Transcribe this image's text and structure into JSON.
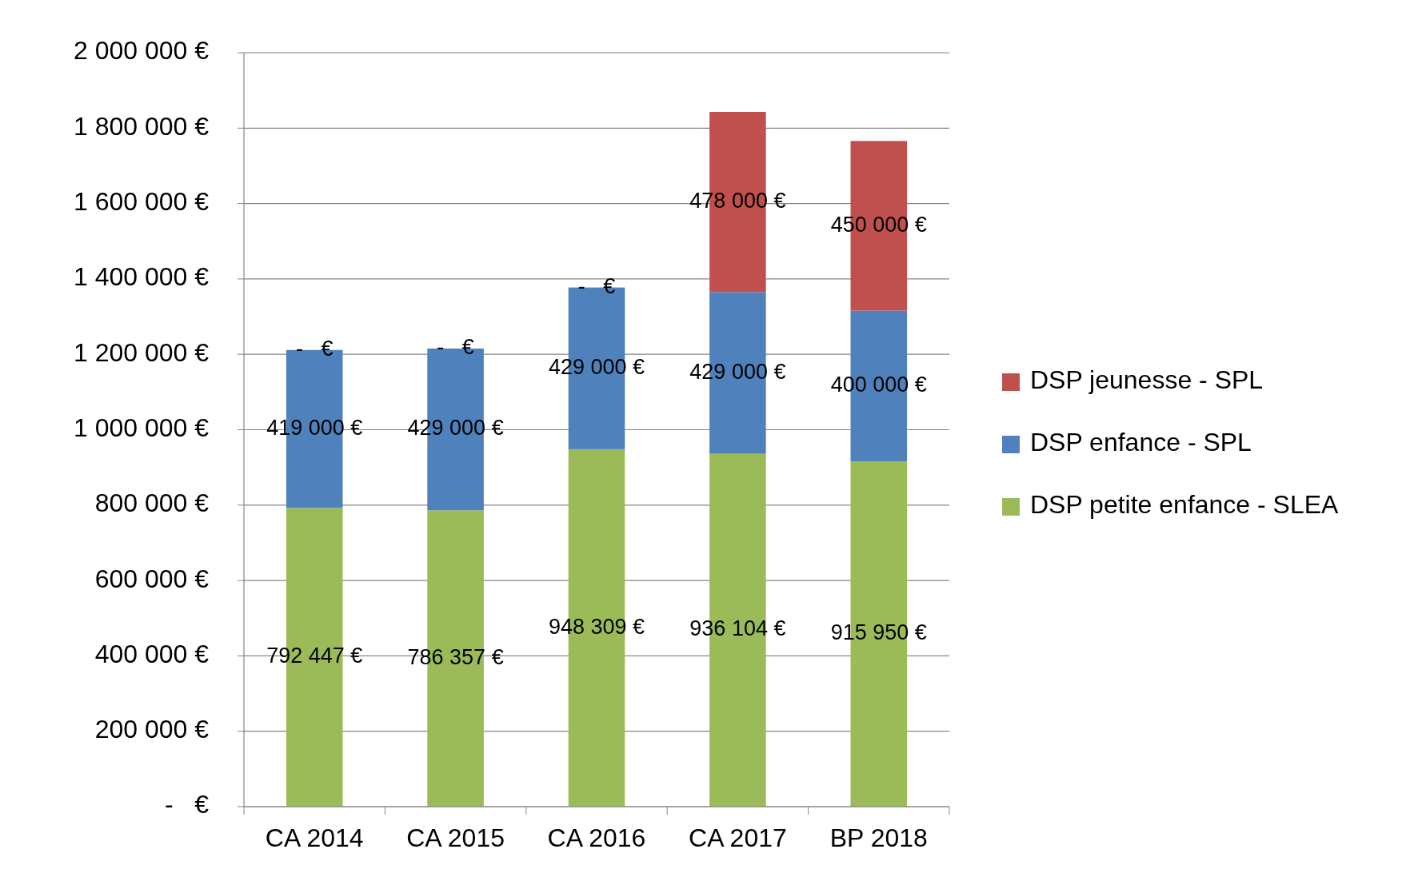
{
  "chart_data": {
    "type": "bar",
    "stacked": true,
    "categories": [
      "CA 2014",
      "CA 2015",
      "CA 2016",
      "CA 2017",
      "BP 2018"
    ],
    "series": [
      {
        "name": "DSP petite enfance - SLEA",
        "color": "#9bbb59",
        "values": [
          792447,
          786357,
          948309,
          936104,
          915950
        ],
        "value_labels": [
          "792 447 €",
          "786 357 €",
          "948 309 €",
          "936 104 €",
          "915 950 €"
        ]
      },
      {
        "name": "DSP enfance - SPL",
        "color": "#4f81bd",
        "values": [
          419000,
          429000,
          429000,
          429000,
          400000
        ],
        "value_labels": [
          "419 000 €",
          "429 000 €",
          "429 000 €",
          "429 000 €",
          "400 000 €"
        ]
      },
      {
        "name": "DSP jeunesse - SPL",
        "color": "#c0504d",
        "values": [
          0,
          0,
          0,
          478000,
          450000
        ],
        "value_labels": [
          "-   €",
          "-   €",
          "-   €",
          "478 000 €",
          "450 000 €"
        ]
      }
    ],
    "ylim": [
      0,
      2000000
    ],
    "yticks": [
      {
        "value": 0,
        "label": "-   €"
      },
      {
        "value": 200000,
        "label": "200 000 €"
      },
      {
        "value": 400000,
        "label": "400 000 €"
      },
      {
        "value": 600000,
        "label": "600 000 €"
      },
      {
        "value": 800000,
        "label": "800 000 €"
      },
      {
        "value": 1000000,
        "label": "1 000 000 €"
      },
      {
        "value": 1200000,
        "label": "1 200 000 €"
      },
      {
        "value": 1400000,
        "label": "1 400 000 €"
      },
      {
        "value": 1600000,
        "label": "1 600 000 €"
      },
      {
        "value": 1800000,
        "label": "1 800 000 €"
      },
      {
        "value": 2000000,
        "label": "2 000 000 €"
      }
    ],
    "grid": "y",
    "legend": "right"
  }
}
